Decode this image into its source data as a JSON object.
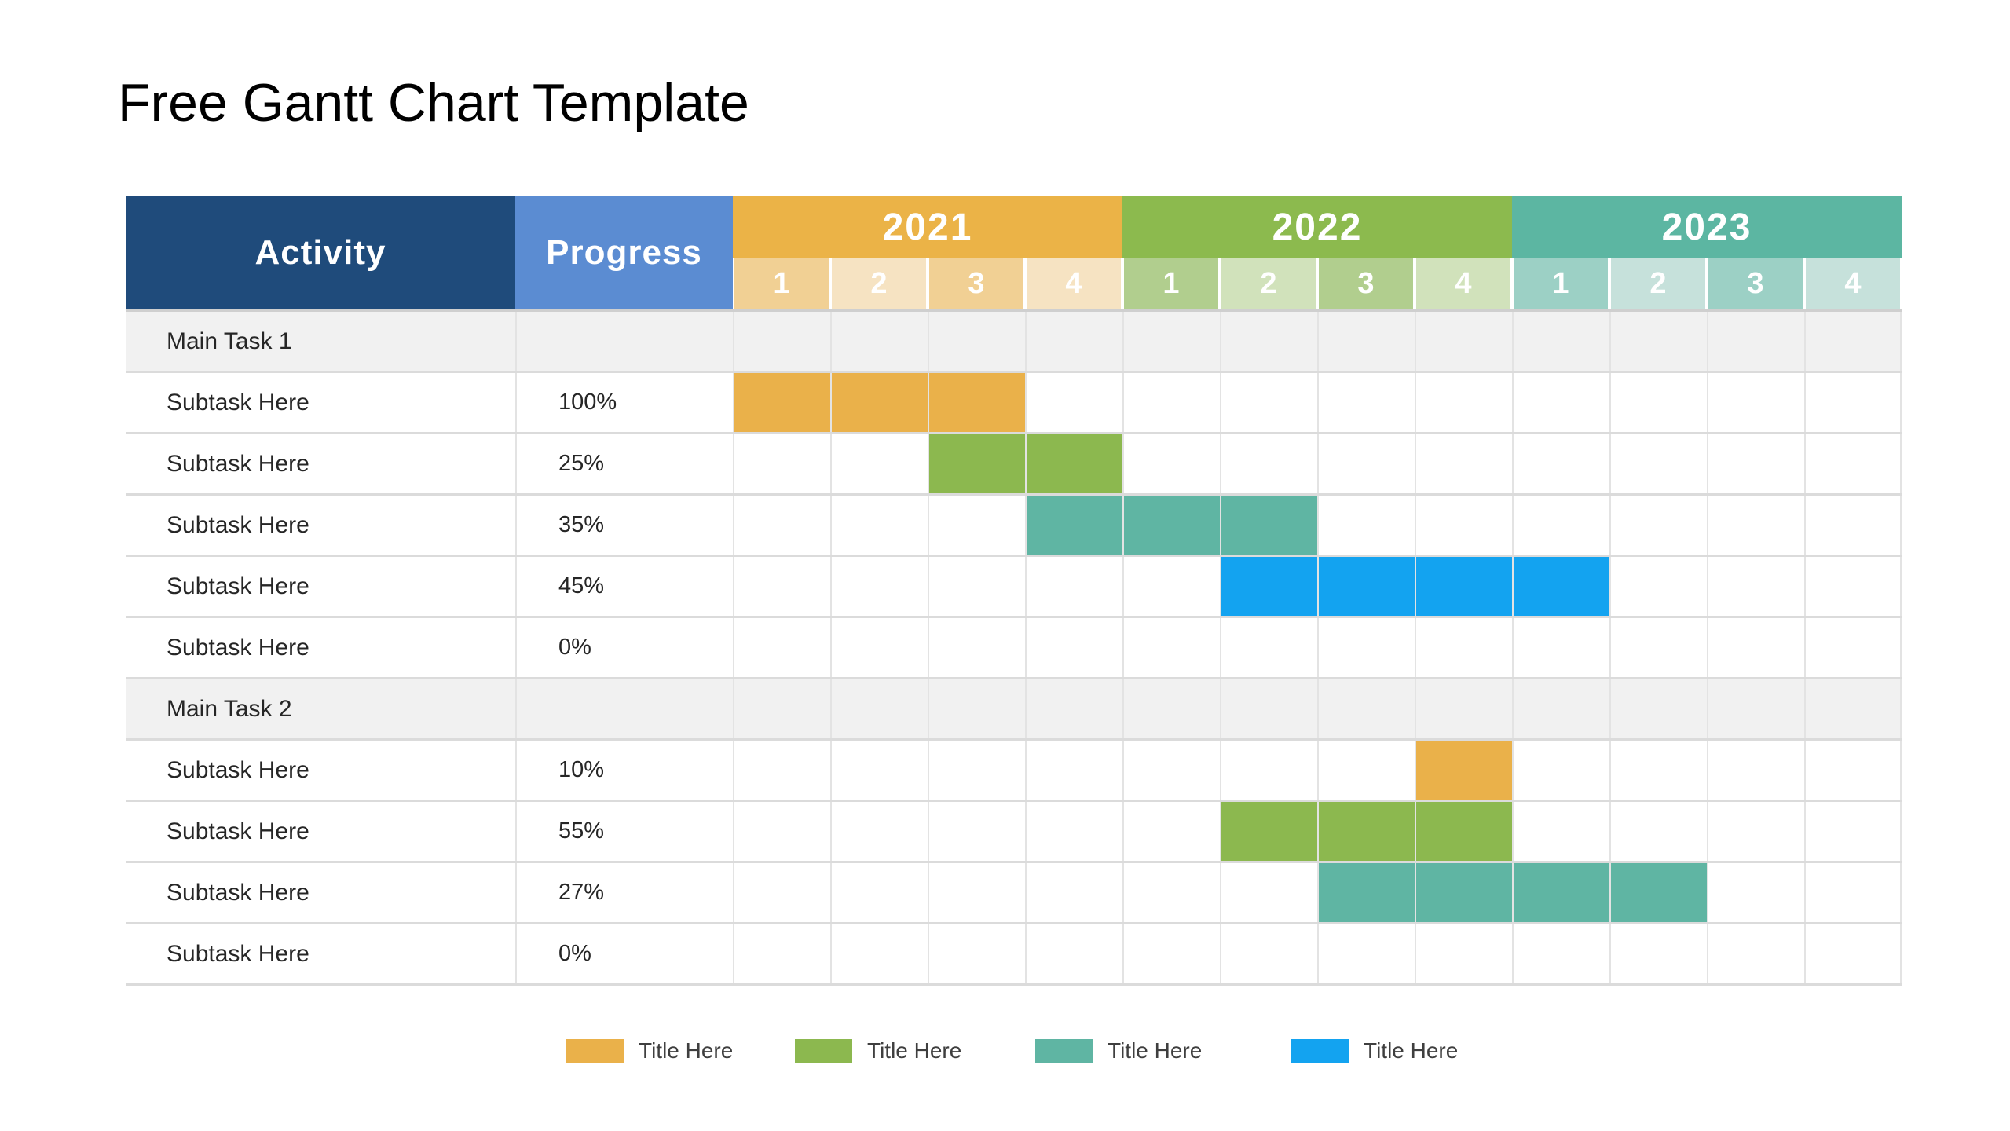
{
  "page": {
    "title": "Free Gantt Chart Template"
  },
  "table": {
    "headers": {
      "activity": "Activity",
      "progress": "Progress"
    },
    "quarter_labels": [
      "1",
      "2",
      "3",
      "4"
    ],
    "years": [
      {
        "label": "2021",
        "color": "#EBB347",
        "tint_dark": "#F1D094",
        "tint_light": "#F6E3C2"
      },
      {
        "label": "2022",
        "color": "#8CBA4E",
        "tint_dark": "#B1CE8E",
        "tint_light": "#D1E2BB"
      },
      {
        "label": "2023",
        "color": "#5CB6A2",
        "tint_dark": "#9CD0C5",
        "tint_light": "#C6E1DB"
      }
    ],
    "rows": [
      {
        "type": "main",
        "activity": "Main Task 1",
        "progress": "",
        "bar": null
      },
      {
        "type": "sub",
        "activity": "Subtask Here",
        "progress": "100%",
        "bar": {
          "start": 0,
          "span": 3,
          "color": "#EAB14A"
        }
      },
      {
        "type": "sub",
        "activity": "Subtask Here",
        "progress": "25%",
        "bar": {
          "start": 2,
          "span": 2,
          "color": "#8CB84F"
        }
      },
      {
        "type": "sub",
        "activity": "Subtask Here",
        "progress": "35%",
        "bar": {
          "start": 3,
          "span": 3,
          "color": "#5FB5A3"
        }
      },
      {
        "type": "sub",
        "activity": "Subtask Here",
        "progress": "45%",
        "bar": {
          "start": 5,
          "span": 4,
          "color": "#13A3F0"
        }
      },
      {
        "type": "sub",
        "activity": "Subtask Here",
        "progress": "0%",
        "bar": null
      },
      {
        "type": "main",
        "activity": "Main Task 2",
        "progress": "",
        "bar": null
      },
      {
        "type": "sub",
        "activity": "Subtask Here",
        "progress": "10%",
        "bar": {
          "start": 7,
          "span": 1,
          "color": "#EAB14A"
        }
      },
      {
        "type": "sub",
        "activity": "Subtask Here",
        "progress": "55%",
        "bar": {
          "start": 5,
          "span": 3,
          "color": "#8CB84F"
        }
      },
      {
        "type": "sub",
        "activity": "Subtask Here",
        "progress": "27%",
        "bar": {
          "start": 6,
          "span": 4,
          "color": "#5FB5A3"
        }
      },
      {
        "type": "sub",
        "activity": "Subtask Here",
        "progress": "0%",
        "bar": null
      }
    ]
  },
  "legend": {
    "items": [
      {
        "label": "Title Here",
        "color": "#EAB14A"
      },
      {
        "label": "Title Here",
        "color": "#8CB84F"
      },
      {
        "label": "Title Here",
        "color": "#5FB5A3"
      },
      {
        "label": "Title Here",
        "color": "#13A3F0"
      }
    ]
  },
  "colors": {
    "activity_header_bg": "#1F4B7B",
    "progress_header_bg": "#5B8CD2",
    "main_row_bg": "#F1F1F1",
    "header_text": "#FFFFFF"
  },
  "chart_data": {
    "type": "table",
    "subtype": "gantt",
    "title": "Free Gantt Chart Template",
    "columns": [
      "Activity",
      "Progress",
      "2021 Q1",
      "2021 Q2",
      "2021 Q3",
      "2021 Q4",
      "2022 Q1",
      "2022 Q2",
      "2022 Q3",
      "2022 Q4",
      "2023 Q1",
      "2023 Q2",
      "2023 Q3",
      "2023 Q4"
    ],
    "time_axis": {
      "years": [
        "2021",
        "2022",
        "2023"
      ],
      "quarters_per_year": 4
    },
    "tasks": [
      {
        "group": "Main Task 1",
        "name": "Subtask Here",
        "progress": "100%",
        "start": "2021 Q1",
        "end": "2021 Q3",
        "color": "#EAB14A"
      },
      {
        "group": "Main Task 1",
        "name": "Subtask Here",
        "progress": "25%",
        "start": "2021 Q3",
        "end": "2021 Q4",
        "color": "#8CB84F"
      },
      {
        "group": "Main Task 1",
        "name": "Subtask Here",
        "progress": "35%",
        "start": "2021 Q4",
        "end": "2022 Q2",
        "color": "#5FB5A3"
      },
      {
        "group": "Main Task 1",
        "name": "Subtask Here",
        "progress": "45%",
        "start": "2022 Q2",
        "end": "2023 Q1",
        "color": "#13A3F0"
      },
      {
        "group": "Main Task 1",
        "name": "Subtask Here",
        "progress": "0%",
        "start": null,
        "end": null,
        "color": null
      },
      {
        "group": "Main Task 2",
        "name": "Subtask Here",
        "progress": "10%",
        "start": "2022 Q4",
        "end": "2022 Q4",
        "color": "#EAB14A"
      },
      {
        "group": "Main Task 2",
        "name": "Subtask Here",
        "progress": "55%",
        "start": "2022 Q2",
        "end": "2022 Q4",
        "color": "#8CB84F"
      },
      {
        "group": "Main Task 2",
        "name": "Subtask Here",
        "progress": "27%",
        "start": "2022 Q3",
        "end": "2023 Q2",
        "color": "#5FB5A3"
      },
      {
        "group": "Main Task 2",
        "name": "Subtask Here",
        "progress": "0%",
        "start": null,
        "end": null,
        "color": null
      }
    ],
    "legend": [
      "Title Here",
      "Title Here",
      "Title Here",
      "Title Here"
    ],
    "layout": {
      "grid": true,
      "legend_position": "bottom-center"
    }
  }
}
